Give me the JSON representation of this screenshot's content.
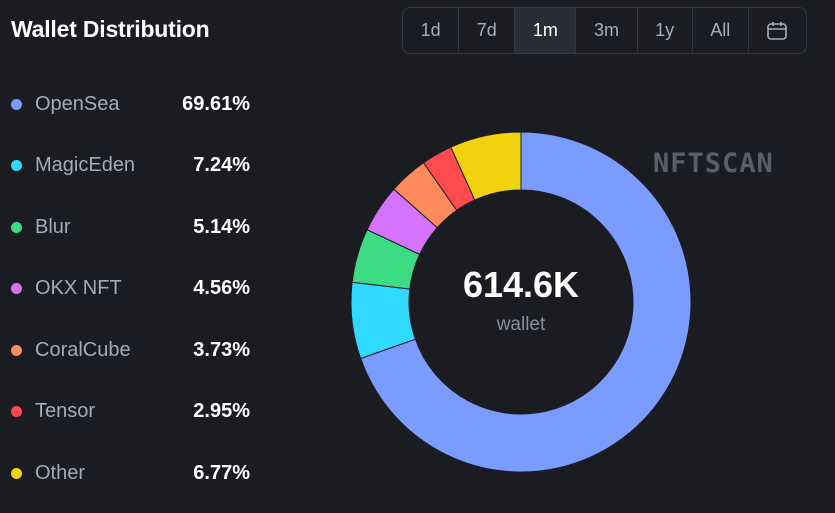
{
  "header": {
    "title": "Wallet Distribution",
    "ranges": [
      {
        "label": "1d",
        "active": false
      },
      {
        "label": "7d",
        "active": false
      },
      {
        "label": "1m",
        "active": true
      },
      {
        "label": "3m",
        "active": false
      },
      {
        "label": "1y",
        "active": false
      },
      {
        "label": "All",
        "active": false
      }
    ],
    "calendar_icon": "calendar-icon"
  },
  "center": {
    "value": "614.6K",
    "label": "wallet"
  },
  "watermark": "NFTSCAN",
  "chart_data": {
    "type": "pie",
    "title": "Wallet Distribution",
    "center_value": "614.6K",
    "center_label": "wallet",
    "legend_position": "left",
    "slices": [
      {
        "name": "OpenSea",
        "value": 69.61,
        "label": "69.61%",
        "color": "#7b9cff"
      },
      {
        "name": "MagicEden",
        "value": 7.24,
        "label": "7.24%",
        "color": "#2fd9ff"
      },
      {
        "name": "Blur",
        "value": 5.14,
        "label": "5.14%",
        "color": "#3ddc84"
      },
      {
        "name": "OKX NFT",
        "value": 4.56,
        "label": "4.56%",
        "color": "#d573ff"
      },
      {
        "name": "CoralCube",
        "value": 3.73,
        "label": "3.73%",
        "color": "#ff8a5c"
      },
      {
        "name": "Tensor",
        "value": 2.95,
        "label": "2.95%",
        "color": "#ff4a4f"
      },
      {
        "name": "Other",
        "value": 6.77,
        "label": "6.77%",
        "color": "#f0d20e"
      }
    ]
  }
}
